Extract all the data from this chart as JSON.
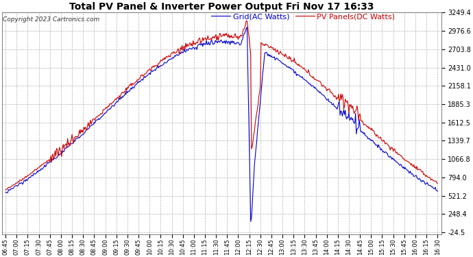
{
  "title": "Total PV Panel & Inverter Power Output Fri Nov 17 16:33",
  "copyright": "Copyright 2023 Cartronics.com",
  "legend_grid": "Grid(AC Watts)",
  "legend_pv": "PV Panels(DC Watts)",
  "grid_color": "#0000cc",
  "pv_color": "#cc0000",
  "background_color": "#ffffff",
  "plot_bg_color": "#ffffff",
  "grid_line_color": "#aaaaaa",
  "ylim_min": -24.5,
  "ylim_max": 3249.4,
  "yticks": [
    3249.4,
    2976.6,
    2703.8,
    2431.0,
    2158.1,
    1885.3,
    1612.5,
    1339.7,
    1066.8,
    794.0,
    521.2,
    248.4,
    -24.5
  ],
  "xtick_labels": [
    "06:45",
    "07:00",
    "07:15",
    "07:30",
    "07:45",
    "08:00",
    "08:15",
    "08:30",
    "08:45",
    "09:00",
    "09:15",
    "09:30",
    "09:45",
    "10:00",
    "10:15",
    "10:30",
    "10:45",
    "11:00",
    "11:15",
    "11:30",
    "11:45",
    "12:00",
    "12:15",
    "12:30",
    "12:45",
    "13:00",
    "13:15",
    "13:30",
    "13:45",
    "14:00",
    "14:15",
    "14:30",
    "14:45",
    "15:00",
    "15:15",
    "15:30",
    "15:45",
    "16:00",
    "16:15",
    "16:30"
  ],
  "title_fontsize": 10,
  "copyright_fontsize": 6.5,
  "legend_fontsize": 8,
  "ytick_fontsize": 7,
  "xtick_fontsize": 6
}
